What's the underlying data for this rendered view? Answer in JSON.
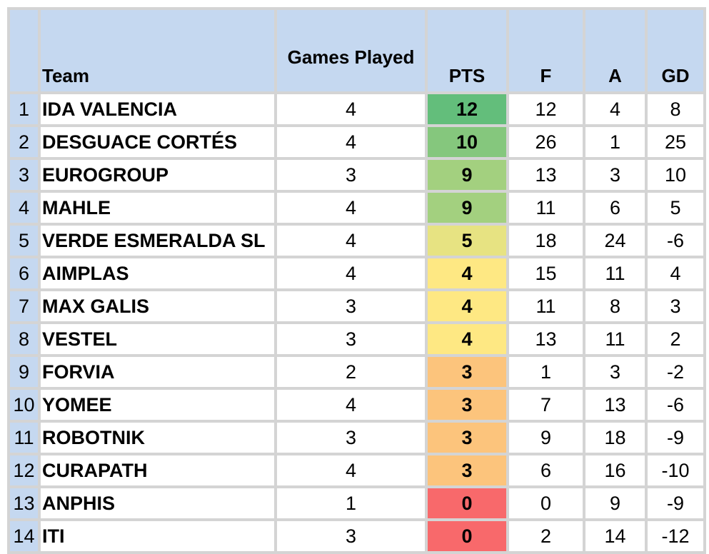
{
  "headers": {
    "rank": "",
    "team": "Team",
    "games_played": "Games Played",
    "pts": "PTS",
    "f": "F",
    "a": "A",
    "gd": "GD"
  },
  "colors": {
    "header_bg": "#c5d8f0",
    "grid": "#d4d4d4",
    "pts_12": "#63be7b",
    "pts_10": "#85c77d",
    "pts_9": "#a3d07f",
    "pts_5": "#e7e382",
    "pts_4": "#fee883",
    "pts_3": "#fcc47c",
    "pts_0": "#f8696b"
  },
  "rows": [
    {
      "rank": "1",
      "team": "IDA VALENCIA",
      "gp": "4",
      "pts": "12",
      "f": "12",
      "a": "4",
      "gd": "8",
      "pts_color": "#63be7b"
    },
    {
      "rank": "2",
      "team": "DESGUACE CORTÉS",
      "gp": "4",
      "pts": "10",
      "f": "26",
      "a": "1",
      "gd": "25",
      "pts_color": "#85c77d"
    },
    {
      "rank": "3",
      "team": "EUROGROUP",
      "gp": "3",
      "pts": "9",
      "f": "13",
      "a": "3",
      "gd": "10",
      "pts_color": "#a3d07f"
    },
    {
      "rank": "4",
      "team": "MAHLE",
      "gp": "4",
      "pts": "9",
      "f": "11",
      "a": "6",
      "gd": "5",
      "pts_color": "#a3d07f"
    },
    {
      "rank": "5",
      "team": "VERDE ESMERALDA SL",
      "gp": "4",
      "pts": "5",
      "f": "18",
      "a": "24",
      "gd": "-6",
      "pts_color": "#e7e382"
    },
    {
      "rank": "6",
      "team": "AIMPLAS",
      "gp": "4",
      "pts": "4",
      "f": "15",
      "a": "11",
      "gd": "4",
      "pts_color": "#fee883"
    },
    {
      "rank": "7",
      "team": "MAX GALIS",
      "gp": "3",
      "pts": "4",
      "f": "11",
      "a": "8",
      "gd": "3",
      "pts_color": "#fee883"
    },
    {
      "rank": "8",
      "team": "VESTEL",
      "gp": "3",
      "pts": "4",
      "f": "13",
      "a": "11",
      "gd": "2",
      "pts_color": "#fee883"
    },
    {
      "rank": "9",
      "team": "FORVIA",
      "gp": "2",
      "pts": "3",
      "f": "1",
      "a": "3",
      "gd": "-2",
      "pts_color": "#fcc47c"
    },
    {
      "rank": "10",
      "team": "YOMEE",
      "gp": "4",
      "pts": "3",
      "f": "7",
      "a": "13",
      "gd": "-6",
      "pts_color": "#fcc47c"
    },
    {
      "rank": "11",
      "team": "ROBOTNIK",
      "gp": "3",
      "pts": "3",
      "f": "9",
      "a": "18",
      "gd": "-9",
      "pts_color": "#fcc47c"
    },
    {
      "rank": "12",
      "team": "CURAPATH",
      "gp": "4",
      "pts": "3",
      "f": "6",
      "a": "16",
      "gd": "-10",
      "pts_color": "#fcc47c"
    },
    {
      "rank": "13",
      "team": "ANPHIS",
      "gp": "1",
      "pts": "0",
      "f": "0",
      "a": "9",
      "gd": "-9",
      "pts_color": "#f8696b"
    },
    {
      "rank": "14",
      "team": "ITI",
      "gp": "3",
      "pts": "0",
      "f": "2",
      "a": "14",
      "gd": "-12",
      "pts_color": "#f8696b"
    }
  ]
}
